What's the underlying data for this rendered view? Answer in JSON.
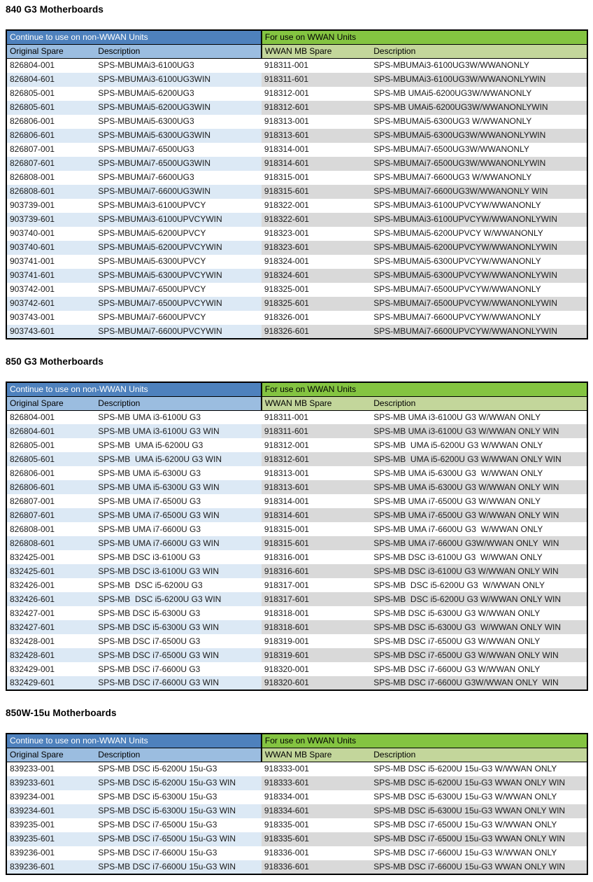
{
  "colors": {
    "header_blue": "#4e81bd",
    "header_green": "#84c441",
    "subheader_blue": "#9bbde0",
    "subheader_green": "#c3d69b",
    "stripe_blue": "#dce9f5",
    "stripe_gray": "#d9d9d9",
    "border_black": "#000000",
    "header_text_white": "#ffffff"
  },
  "tables": [
    {
      "title": "840 G3 Motherboards",
      "left_header": "Continue to use on non-WWAN Units",
      "right_header": "For use on WWAN Units",
      "columns": [
        "Original Spare",
        "Description",
        "WWAN MB Spare",
        "Description"
      ],
      "rows": [
        [
          "826804-001",
          "SPS-MBUMAi3-6100UG3",
          "918311-001",
          "SPS-MBUMAi3-6100UG3W/WWANONLY"
        ],
        [
          "826804-601",
          "SPS-MBUMAi3-6100UG3WIN",
          "918311-601",
          "SPS-MBUMAi3-6100UG3W/WWANONLYWIN"
        ],
        [
          "826805-001",
          "SPS-MBUMAi5-6200UG3",
          "918312-001",
          "SPS-MB UMAi5-6200UG3W/WWANONLY"
        ],
        [
          "826805-601",
          "SPS-MBUMAi5-6200UG3WIN",
          "918312-601",
          "SPS-MB UMAi5-6200UG3W/WWANONLYWIN"
        ],
        [
          "826806-001",
          "SPS-MBUMAi5-6300UG3",
          "918313-001",
          "SPS-MBUMAi5-6300UG3 W/WWANONLY"
        ],
        [
          "826806-601",
          "SPS-MBUMAi5-6300UG3WIN",
          "918313-601",
          "SPS-MBUMAi5-6300UG3W/WWANONLYWIN"
        ],
        [
          "826807-001",
          "SPS-MBUMAi7-6500UG3",
          "918314-001",
          "SPS-MBUMAi7-6500UG3W/WWANONLY"
        ],
        [
          "826807-601",
          "SPS-MBUMAi7-6500UG3WIN",
          "918314-601",
          "SPS-MBUMAi7-6500UG3W/WWANONLYWIN"
        ],
        [
          "826808-001",
          "SPS-MBUMAi7-6600UG3",
          "918315-001",
          "SPS-MBUMAi7-6600UG3 W/WWANONLY"
        ],
        [
          "826808-601",
          "SPS-MBUMAi7-6600UG3WIN",
          "918315-601",
          "SPS-MBUMAi7-6600UG3W/WWANONLY WIN"
        ],
        [
          "903739-001",
          "SPS-MBUMAi3-6100UPVCY",
          "918322-001",
          "SPS-MBUMAi3-6100UPVCYW/WWANONLY"
        ],
        [
          "903739-601",
          "SPS-MBUMAi3-6100UPVCYWIN",
          "918322-601",
          "SPS-MBUMAi3-6100UPVCYW/WWANONLYWIN"
        ],
        [
          "903740-001",
          "SPS-MBUMAi5-6200UPVCY",
          "918323-001",
          "SPS-MBUMAi5-6200UPVCY W/WWANONLY"
        ],
        [
          "903740-601",
          "SPS-MBUMAi5-6200UPVCYWIN",
          "918323-601",
          "SPS-MBUMAi5-6200UPVCYW/WWANONLYWIN"
        ],
        [
          "903741-001",
          "SPS-MBUMAi5-6300UPVCY",
          "918324-001",
          "SPS-MBUMAi5-6300UPVCYW/WWANONLY"
        ],
        [
          "903741-601",
          "SPS-MBUMAi5-6300UPVCYWIN",
          "918324-601",
          "SPS-MBUMAi5-6300UPVCYW/WWANONLYWIN"
        ],
        [
          "903742-001",
          "SPS-MBUMAi7-6500UPVCY",
          "918325-001",
          "SPS-MBUMAi7-6500UPVCYW/WWANONLY"
        ],
        [
          "903742-601",
          "SPS-MBUMAi7-6500UPVCYWIN",
          "918325-601",
          "SPS-MBUMAi7-6500UPVCYW/WWANONLYWIN"
        ],
        [
          "903743-001",
          "SPS-MBUMAi7-6600UPVCY",
          "918326-001",
          "SPS-MBUMAi7-6600UPVCYW/WWANONLY"
        ],
        [
          "903743-601",
          "SPS-MBUMAi7-6600UPVCYWIN",
          "918326-601",
          "SPS-MBUMAi7-6600UPVCYW/WWANONLYWIN"
        ]
      ]
    },
    {
      "title": "850 G3 Motherboards",
      "left_header": "Continue to use on non-WWAN Units",
      "right_header": "For use on WWAN Units",
      "columns": [
        "Original Spare",
        "Description",
        "WWAN MB Spare",
        "Description"
      ],
      "rows": [
        [
          "826804-001",
          "SPS-MB UMA i3-6100U G3",
          "918311-001",
          "SPS-MB UMA i3-6100U G3 W/WWAN ONLY"
        ],
        [
          "826804-601",
          "SPS-MB UMA i3-6100U G3 WIN",
          "918311-601",
          "SPS-MB UMA i3-6100U G3 W/WWAN ONLY WIN"
        ],
        [
          "826805-001",
          "SPS-MB  UMA i5-6200U G3",
          "918312-001",
          "SPS-MB  UMA i5-6200U G3 W/WWAN ONLY"
        ],
        [
          "826805-601",
          "SPS-MB  UMA i5-6200U G3 WIN",
          "918312-601",
          "SPS-MB  UMA i5-6200U G3 W/WWAN ONLY WIN"
        ],
        [
          "826806-001",
          "SPS-MB UMA i5-6300U G3",
          "918313-001",
          "SPS-MB UMA i5-6300U G3  W/WWAN ONLY"
        ],
        [
          "826806-601",
          "SPS-MB UMA i5-6300U G3 WIN",
          "918313-601",
          "SPS-MB UMA i5-6300U G3 W/WWAN ONLY WIN"
        ],
        [
          "826807-001",
          "SPS-MB UMA i7-6500U G3",
          "918314-001",
          "SPS-MB UMA i7-6500U G3 W/WWAN ONLY"
        ],
        [
          "826807-601",
          "SPS-MB UMA i7-6500U G3 WIN",
          "918314-601",
          "SPS-MB UMA i7-6500U G3 W/WWAN ONLY WIN"
        ],
        [
          "826808-001",
          "SPS-MB UMA i7-6600U G3",
          "918315-001",
          "SPS-MB UMA i7-6600U G3  W/WWAN ONLY"
        ],
        [
          "826808-601",
          "SPS-MB UMA i7-6600U G3 WIN",
          "918315-601",
          "SPS-MB UMA i7-6600U G3W/WWAN ONLY  WIN"
        ],
        [
          "832425-001",
          "SPS-MB DSC i3-6100U G3",
          "918316-001",
          "SPS-MB DSC i3-6100U G3  W/WWAN ONLY"
        ],
        [
          "832425-601",
          "SPS-MB DSC i3-6100U G3 WIN",
          "918316-601",
          "SPS-MB DSC i3-6100U G3 W/WWAN ONLY WIN"
        ],
        [
          "832426-001",
          "SPS-MB  DSC i5-6200U G3",
          "918317-001",
          "SPS-MB  DSC i5-6200U G3  W/WWAN ONLY"
        ],
        [
          "832426-601",
          "SPS-MB  DSC i5-6200U G3 WIN",
          "918317-601",
          "SPS-MB  DSC i5-6200U G3 W/WWAN ONLY WIN"
        ],
        [
          "832427-001",
          "SPS-MB DSC i5-6300U G3",
          "918318-001",
          "SPS-MB DSC i5-6300U G3 W/WWAN ONLY"
        ],
        [
          "832427-601",
          "SPS-MB DSC i5-6300U G3 WIN",
          "918318-601",
          "SPS-MB DSC i5-6300U G3  W/WWAN ONLY WIN"
        ],
        [
          "832428-001",
          "SPS-MB DSC i7-6500U G3",
          "918319-001",
          "SPS-MB DSC i7-6500U G3 W/WWAN ONLY"
        ],
        [
          "832428-601",
          "SPS-MB DSC i7-6500U G3 WIN",
          "918319-601",
          "SPS-MB DSC i7-6500U G3 W/WWAN ONLY WIN"
        ],
        [
          "832429-001",
          "SPS-MB DSC i7-6600U G3",
          "918320-001",
          "SPS-MB DSC i7-6600U G3 W/WWAN ONLY"
        ],
        [
          "832429-601",
          "SPS-MB DSC i7-6600U G3 WIN",
          "918320-601",
          "SPS-MB DSC i7-6600U G3W/WWAN ONLY  WIN"
        ]
      ]
    },
    {
      "title": "850W-15u Motherboards",
      "left_header": "Continue to use on non-WWAN Units",
      "right_header": "For use on WWAN Units",
      "columns": [
        "Original Spare",
        "Description",
        "WWAN MB Spare",
        "Description"
      ],
      "rows": [
        [
          "839233-001",
          "SPS-MB DSC i5-6200U 15u-G3",
          "918333-001",
          "SPS-MB DSC i5-6200U 15u-G3 W/WWAN ONLY"
        ],
        [
          "839233-601",
          "SPS-MB DSC i5-6200U 15u-G3 WIN",
          "918333-601",
          "SPS-MB DSC i5-6200U 15u-G3 WWAN ONLY WIN"
        ],
        [
          "839234-001",
          "SPS-MB DSC i5-6300U 15u-G3",
          "918334-001",
          "SPS-MB DSC i5-6300U 15u-G3 W/WWAN ONLY"
        ],
        [
          "839234-601",
          "SPS-MB DSC i5-6300U 15u-G3 WIN",
          "918334-601",
          "SPS-MB DSC i5-6300U 15u-G3 WWAN ONLY WIN"
        ],
        [
          "839235-001",
          "SPS-MB DSC i7-6500U 15u-G3",
          "918335-001",
          "SPS-MB DSC i7-6500U 15u-G3 W/WWAN ONLY"
        ],
        [
          "839235-601",
          "SPS-MB DSC i7-6500U 15u-G3 WIN",
          "918335-601",
          "SPS-MB DSC i7-6500U 15u-G3 WWAN ONLY WIN"
        ],
        [
          "839236-001",
          "SPS-MB DSC i7-6600U 15u-G3",
          "918336-001",
          "SPS-MB DSC i7-6600U 15u-G3 W/WWAN ONLY"
        ],
        [
          "839236-601",
          "SPS-MB DSC i7-6600U 15u-G3 WIN",
          "918336-601",
          "SPS-MB DSC i7-6600U 15u-G3 WWAN ONLY WIN"
        ]
      ]
    }
  ]
}
